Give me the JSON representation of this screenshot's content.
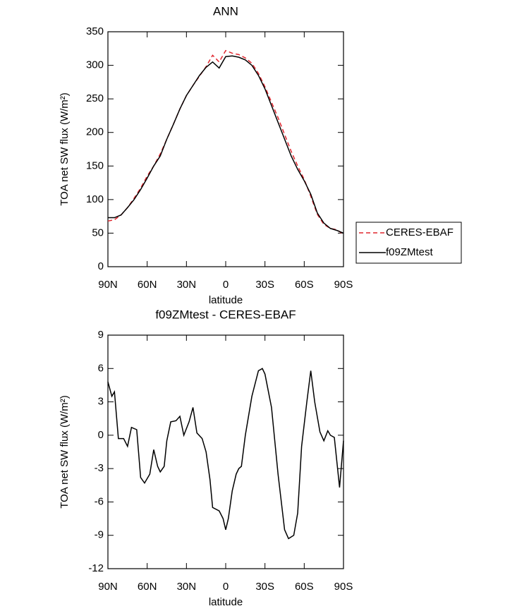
{
  "chart_data": [
    {
      "type": "line",
      "title": "ANN",
      "xlabel": "latitude",
      "ylabel": "TOA net SW flux (W/m²)",
      "x": [
        90,
        85,
        80,
        75,
        70,
        65,
        60,
        55,
        50,
        45,
        40,
        35,
        30,
        25,
        20,
        15,
        10,
        5,
        0,
        -5,
        -10,
        -15,
        -20,
        -25,
        -30,
        -35,
        -40,
        -45,
        -50,
        -55,
        -60,
        -65,
        -70,
        -75,
        -80,
        -85,
        -90
      ],
      "series": [
        {
          "name": "CERES-EBAF",
          "color": "#e0262e",
          "dashed": true,
          "values": [
            68,
            70,
            77,
            88,
            102,
            117,
            135,
            150,
            168,
            190,
            212,
            235,
            255,
            270,
            284,
            298,
            315,
            305,
            322,
            318,
            316,
            311,
            303,
            288,
            268,
            245,
            222,
            197,
            172,
            150,
            130,
            105,
            78,
            63,
            57,
            55,
            48
          ]
        },
        {
          "name": "f09ZMtest",
          "color": "#000000",
          "dashed": false,
          "values": [
            73,
            73,
            77,
            88,
            100,
            115,
            132,
            150,
            165,
            190,
            212,
            235,
            255,
            270,
            285,
            297,
            305,
            296,
            313,
            314,
            312,
            308,
            300,
            285,
            265,
            240,
            215,
            190,
            165,
            145,
            128,
            108,
            80,
            65,
            57,
            54,
            50
          ]
        }
      ],
      "xlim": [
        90,
        -90
      ],
      "xticks": [
        {
          "value": 90,
          "label": "90N"
        },
        {
          "value": 60,
          "label": "60N"
        },
        {
          "value": 30,
          "label": "30N"
        },
        0,
        {
          "value": -30,
          "label": "30S"
        },
        {
          "value": -60,
          "label": "60S"
        },
        {
          "value": -90,
          "label": "90S"
        }
      ],
      "ylim": [
        0,
        350
      ],
      "yticks": [
        0,
        50,
        100,
        150,
        200,
        250,
        300,
        350
      ],
      "legend": "right"
    },
    {
      "type": "line",
      "title": "f09ZMtest - CERES-EBAF",
      "xlabel": "latitude",
      "ylabel": "TOA net SW flux (W/m²)",
      "x": [
        90,
        87,
        85,
        82,
        78,
        75,
        72,
        68,
        65,
        62,
        58,
        55,
        52,
        50,
        47,
        45,
        42,
        38,
        35,
        32,
        28,
        25,
        22,
        18,
        15,
        12,
        10,
        5,
        2,
        0,
        -2,
        -5,
        -8,
        -10,
        -12,
        -15,
        -20,
        -25,
        -28,
        -30,
        -35,
        -40,
        -45,
        -48,
        -52,
        -55,
        -58,
        -62,
        -65,
        -68,
        -72,
        -75,
        -78,
        -80,
        -83,
        -87,
        -90
      ],
      "values": [
        4.8,
        3.5,
        3.9,
        -0.3,
        -0.3,
        -1.0,
        0.7,
        0.5,
        -3.8,
        -4.3,
        -3.5,
        -1.3,
        -2.8,
        -3.3,
        -2.8,
        -0.5,
        1.2,
        1.3,
        1.7,
        0.0,
        1.2,
        2.5,
        0.2,
        -0.3,
        -1.5,
        -4.0,
        -6.5,
        -6.8,
        -7.5,
        -8.5,
        -7.5,
        -5.0,
        -3.5,
        -3.0,
        -2.8,
        0.0,
        3.5,
        5.8,
        6.0,
        5.5,
        2.5,
        -3.5,
        -8.5,
        -9.3,
        -9.0,
        -7.0,
        -1.0,
        3.0,
        5.8,
        3.0,
        0.3,
        -0.5,
        0.4,
        0.0,
        -0.2,
        -4.7,
        -0.5
      ],
      "color": "#000000",
      "xlim": [
        90,
        -90
      ],
      "xticks": [
        {
          "value": 90,
          "label": "90N"
        },
        {
          "value": 60,
          "label": "60N"
        },
        {
          "value": 30,
          "label": "30N"
        },
        0,
        {
          "value": -30,
          "label": "30S"
        },
        {
          "value": -60,
          "label": "60S"
        },
        {
          "value": -90,
          "label": "90S"
        }
      ],
      "ylim": [
        -12,
        9
      ],
      "yticks": [
        -12,
        -9,
        -6,
        -3,
        0,
        3,
        6,
        9
      ]
    }
  ]
}
